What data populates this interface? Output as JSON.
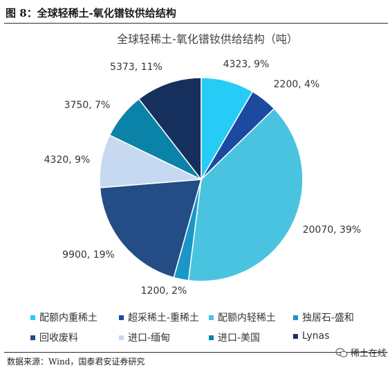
{
  "figure": {
    "title": "图 8：全球轻稀土-氧化镨钕供给结构",
    "source": "数据来源：Wind，国泰君安证券研究",
    "watermark": "稀土在线"
  },
  "chart_data": {
    "type": "pie",
    "title": "全球轻稀土-氧化镨钕供给结构（吨）",
    "slices": [
      {
        "name": "配额内重稀土",
        "value": 4323,
        "label": "4323, 9%",
        "color": "#26ccf5"
      },
      {
        "name": "超采稀土-重稀土",
        "value": 2200,
        "label": "2200, 4%",
        "color": "#1b4aa0"
      },
      {
        "name": "配额内轻稀土",
        "value": 20070,
        "label": "20070, 39%",
        "color": "#49c3e0"
      },
      {
        "name": "独居石-盛和",
        "value": 1200,
        "label": "1200, 2%",
        "color": "#1a96c8"
      },
      {
        "name": "回收废料",
        "value": 9900,
        "label": "9900, 19%",
        "color": "#234d84"
      },
      {
        "name": "进口-缅甸",
        "value": 4320,
        "label": "4320, 9%",
        "color": "#c6d9f0"
      },
      {
        "name": "进口-美国",
        "value": 3750,
        "label": "3750, 7%",
        "color": "#0b83a8"
      },
      {
        "name": "Lynas",
        "value": 5373,
        "label": "5373, 11%",
        "color": "#16305e"
      }
    ],
    "legend_position": "bottom"
  }
}
